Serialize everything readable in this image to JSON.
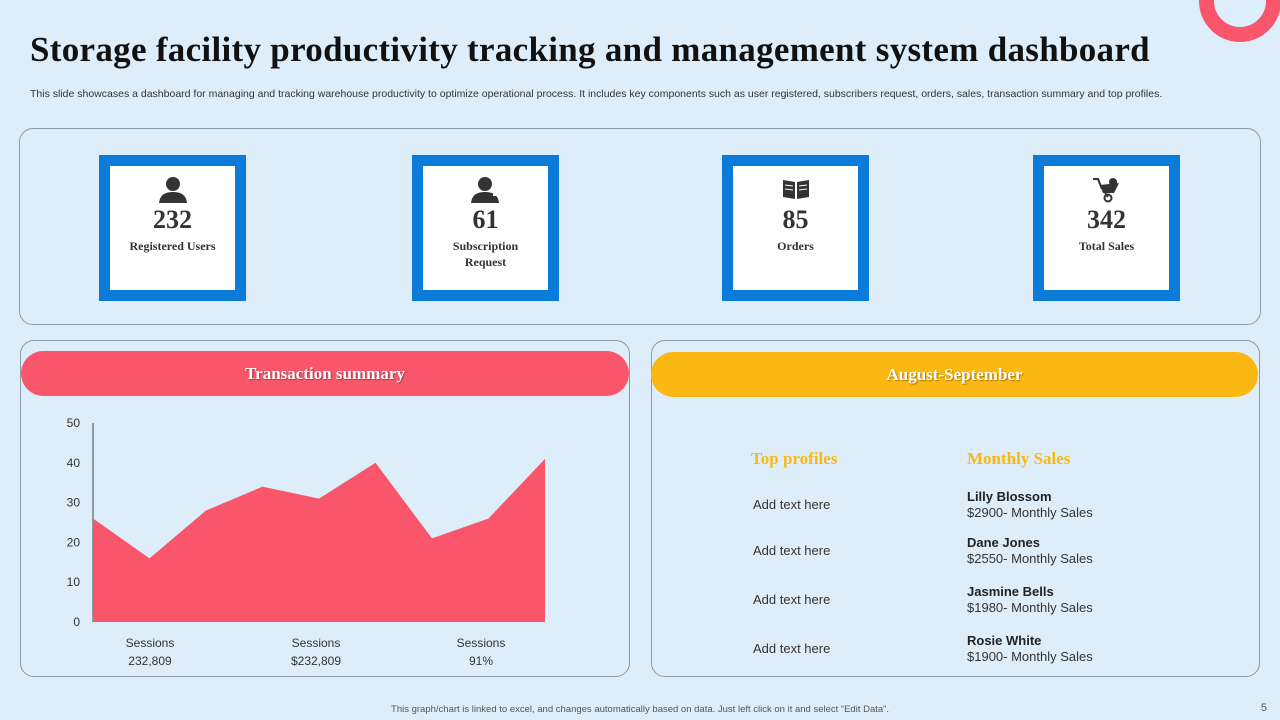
{
  "slide": {
    "title": "Storage facility productivity tracking and management system dashboard",
    "subtitle": "This slide showcases a dashboard for managing and tracking warehouse productivity to optimize operational process. It includes key components such as user registered, subscribers request, orders, sales, transaction summary and top profiles.",
    "footer": "This graph/chart is linked to excel, and changes automatically based on data. Just left click on it and select “Edit Data”.",
    "page_number": "5"
  },
  "kpis": [
    {
      "icon": "user-icon",
      "value": "232",
      "label": "Registered Users"
    },
    {
      "icon": "user-request-icon",
      "value": "61",
      "label": "Subscription Request"
    },
    {
      "icon": "book-icon",
      "value": "85",
      "label": "Orders"
    },
    {
      "icon": "wheelbarrow-icon",
      "value": "342",
      "label": "Total Sales"
    }
  ],
  "transaction": {
    "title": "Transaction summary",
    "sessions": [
      {
        "label": "Sessions",
        "value": "232,809"
      },
      {
        "label": "Sessions",
        "value": "$232,809"
      },
      {
        "label": "Sessions",
        "value": "91%"
      }
    ]
  },
  "chart_data": {
    "type": "area",
    "x": [
      1,
      2,
      3,
      4,
      5,
      6,
      7,
      8,
      9
    ],
    "values": [
      26,
      16,
      28,
      34,
      31,
      40,
      21,
      26,
      41
    ],
    "ylim": [
      0,
      50
    ],
    "yticks": [
      0,
      10,
      20,
      30,
      40,
      50
    ],
    "color": "#f9566b",
    "grid": false
  },
  "profiles": {
    "header": "August-September",
    "col_left": "Top profiles",
    "col_right": "Monthly Sales",
    "rows": [
      {
        "left": "Add text here",
        "name": "Lilly Blossom",
        "sales": "$2900- Monthly Sales"
      },
      {
        "left": "Add text here",
        "name": "Dane Jones",
        "sales": "$2550- Monthly Sales"
      },
      {
        "left": "Add text here",
        "name": "Jasmine Bells",
        "sales": "$1980- Monthly Sales"
      },
      {
        "left": "Add text here",
        "name": "Rosie White",
        "sales": "$1900- Monthly Sales"
      }
    ]
  },
  "colors": {
    "accent_blue": "#0a7bd8",
    "accent_red": "#f9566b",
    "accent_yellow": "#fbb712",
    "background": "#ddeefa"
  }
}
